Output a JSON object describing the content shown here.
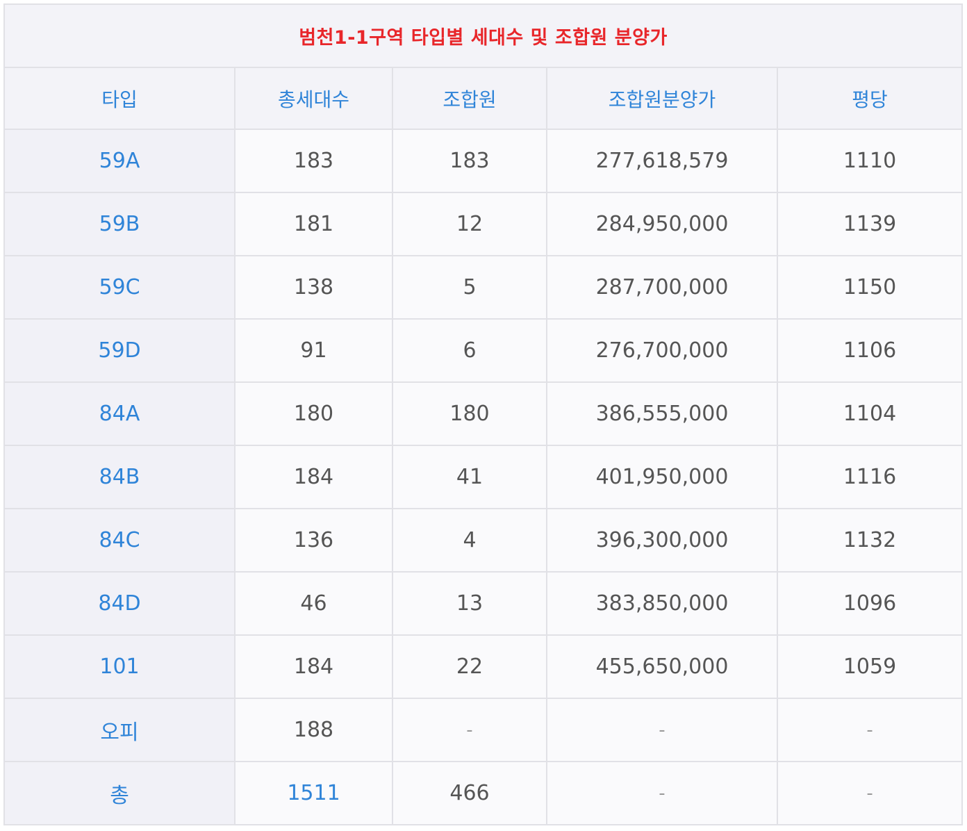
{
  "title": "범천1-1구역  타입별 세대수 및 조합원 분양가",
  "headers": [
    "타입",
    "총세대수",
    "조합원",
    "조합원분양가",
    "평당"
  ],
  "rows": [
    {
      "type": "59A",
      "total_units": "183",
      "members": "183",
      "member_price": "277,618,579",
      "per_pyeong": "1110"
    },
    {
      "type": "59B",
      "total_units": "181",
      "members": "12",
      "member_price": "284,950,000",
      "per_pyeong": "1139"
    },
    {
      "type": "59C",
      "total_units": "138",
      "members": "5",
      "member_price": "287,700,000",
      "per_pyeong": "1150"
    },
    {
      "type": "59D",
      "total_units": "91",
      "members": "6",
      "member_price": "276,700,000",
      "per_pyeong": "1106"
    },
    {
      "type": "84A",
      "total_units": "180",
      "members": "180",
      "member_price": "386,555,000",
      "per_pyeong": "1104"
    },
    {
      "type": "84B",
      "total_units": "184",
      "members": "41",
      "member_price": "401,950,000",
      "per_pyeong": "1116"
    },
    {
      "type": "84C",
      "total_units": "136",
      "members": "4",
      "member_price": "396,300,000",
      "per_pyeong": "1132"
    },
    {
      "type": "84D",
      "total_units": "46",
      "members": "13",
      "member_price": "383,850,000",
      "per_pyeong": "1096"
    },
    {
      "type": "101",
      "total_units": "184",
      "members": "22",
      "member_price": "455,650,000",
      "per_pyeong": "1059"
    },
    {
      "type": "오피",
      "total_units": "188",
      "members": "-",
      "member_price": "-",
      "per_pyeong": "-"
    }
  ],
  "total_row": {
    "type": "총",
    "total_units": "1511",
    "members": "466",
    "member_price": "-",
    "per_pyeong": "-"
  },
  "colors": {
    "title": "#e8262a",
    "accent": "#2f84d8",
    "text": "#555555",
    "header_bg": "#f3f3f8",
    "border": "#e1e1e6"
  }
}
